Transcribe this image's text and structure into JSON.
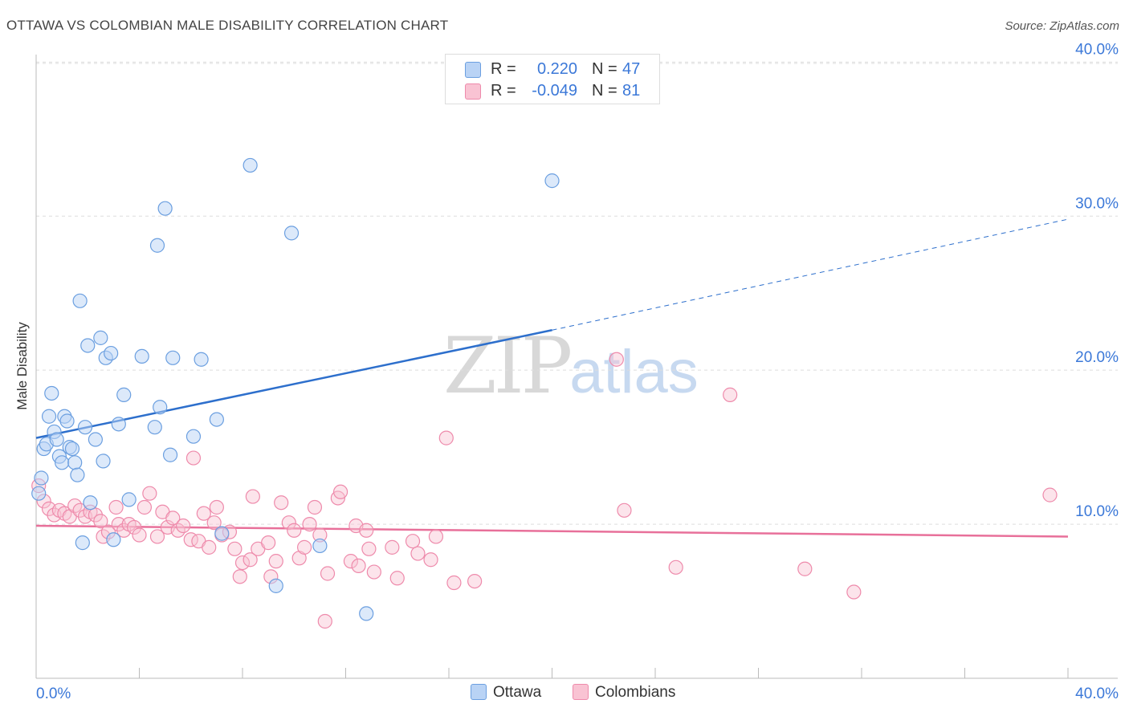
{
  "title": "OTTAWA VS COLOMBIAN MALE DISABILITY CORRELATION CHART",
  "source": "Source: ZipAtlas.com",
  "watermark": {
    "zip": "ZIP",
    "atlas": "atlas"
  },
  "legend_top": [
    {
      "r_label": "R =",
      "r_value": "0.220",
      "n_label": "N =",
      "n_value": "47"
    },
    {
      "r_label": "R =",
      "r_value": "-0.049",
      "n_label": "N =",
      "n_value": "81"
    }
  ],
  "legend_bottom": [
    {
      "label": "Ottawa"
    },
    {
      "label": "Colombians"
    }
  ],
  "colors": {
    "ottawa_fill": "#b9d3f5",
    "ottawa_stroke": "#6b9fe0",
    "ottawa_line": "#2d6fcc",
    "colombians_fill": "#f9c3d3",
    "colombians_stroke": "#ee8aab",
    "colombians_line": "#e8709a",
    "tick_label": "#3b78d8",
    "grid": "#dddddd"
  },
  "chart_data": {
    "type": "scatter",
    "title": "OTTAWA VS COLOMBIAN MALE DISABILITY CORRELATION CHART",
    "xlabel": "",
    "ylabel": "Male Disability",
    "xlim": [
      0,
      40
    ],
    "ylim": [
      0,
      40.8
    ],
    "x_tick_labels": [
      "0.0%",
      "40.0%"
    ],
    "y_ticks": [
      10,
      20,
      30,
      40
    ],
    "y_tick_labels": [
      "10.0%",
      "20.0%",
      "30.0%",
      "40.0%"
    ],
    "grid": "horizontal dashed",
    "legend_position": "top-center and bottom",
    "series": [
      {
        "name": "Ottawa",
        "r": 0.22,
        "n": 47,
        "trend": {
          "x0": 0.0,
          "y0": 15.6,
          "x1": 20.0,
          "y1": 22.6,
          "dashed_to_x": 40.0,
          "dashed_to_y": 29.8
        },
        "points": [
          [
            0.1,
            12.0
          ],
          [
            0.2,
            13.0
          ],
          [
            0.3,
            14.9
          ],
          [
            0.4,
            15.2
          ],
          [
            0.5,
            17.0
          ],
          [
            0.6,
            18.5
          ],
          [
            0.7,
            16.0
          ],
          [
            0.8,
            15.5
          ],
          [
            0.9,
            14.4
          ],
          [
            1.0,
            14.0
          ],
          [
            1.1,
            17.0
          ],
          [
            1.2,
            16.7
          ],
          [
            1.3,
            15.0
          ],
          [
            1.4,
            14.9
          ],
          [
            1.5,
            14.0
          ],
          [
            1.6,
            13.2
          ],
          [
            1.7,
            24.5
          ],
          [
            1.8,
            8.8
          ],
          [
            1.9,
            16.3
          ],
          [
            2.0,
            21.6
          ],
          [
            2.1,
            11.4
          ],
          [
            2.3,
            15.5
          ],
          [
            2.5,
            22.1
          ],
          [
            2.6,
            14.1
          ],
          [
            2.7,
            20.8
          ],
          [
            2.9,
            21.1
          ],
          [
            3.0,
            9.0
          ],
          [
            3.2,
            16.5
          ],
          [
            3.4,
            18.4
          ],
          [
            3.6,
            11.6
          ],
          [
            4.1,
            20.9
          ],
          [
            4.6,
            16.3
          ],
          [
            4.7,
            28.1
          ],
          [
            4.8,
            17.6
          ],
          [
            5.0,
            30.5
          ],
          [
            5.2,
            14.5
          ],
          [
            5.3,
            20.8
          ],
          [
            6.1,
            15.7
          ],
          [
            6.4,
            20.7
          ],
          [
            7.0,
            16.8
          ],
          [
            7.2,
            9.4
          ],
          [
            8.3,
            33.3
          ],
          [
            9.3,
            6.0
          ],
          [
            9.9,
            28.9
          ],
          [
            11.0,
            8.6
          ],
          [
            12.8,
            4.2
          ],
          [
            20.0,
            32.3
          ]
        ]
      },
      {
        "name": "Colombians",
        "r": -0.049,
        "n": 81,
        "trend": {
          "x0": 0.0,
          "y0": 9.9,
          "x1": 40.0,
          "y1": 9.2
        },
        "points": [
          [
            0.1,
            12.5
          ],
          [
            0.3,
            11.5
          ],
          [
            0.5,
            11.0
          ],
          [
            0.7,
            10.6
          ],
          [
            0.9,
            10.9
          ],
          [
            1.1,
            10.7
          ],
          [
            1.3,
            10.5
          ],
          [
            1.5,
            11.2
          ],
          [
            1.7,
            10.9
          ],
          [
            1.9,
            10.5
          ],
          [
            2.1,
            10.8
          ],
          [
            2.3,
            10.6
          ],
          [
            2.5,
            10.2
          ],
          [
            2.6,
            9.2
          ],
          [
            2.8,
            9.5
          ],
          [
            3.1,
            11.1
          ],
          [
            3.2,
            10.0
          ],
          [
            3.4,
            9.6
          ],
          [
            3.6,
            10.0
          ],
          [
            3.8,
            9.8
          ],
          [
            4.0,
            9.3
          ],
          [
            4.2,
            11.1
          ],
          [
            4.4,
            12.0
          ],
          [
            4.7,
            9.2
          ],
          [
            4.9,
            10.8
          ],
          [
            5.1,
            9.8
          ],
          [
            5.3,
            10.4
          ],
          [
            5.5,
            9.6
          ],
          [
            5.7,
            9.9
          ],
          [
            6.0,
            9.0
          ],
          [
            6.1,
            14.3
          ],
          [
            6.3,
            8.9
          ],
          [
            6.5,
            10.7
          ],
          [
            6.7,
            8.5
          ],
          [
            6.9,
            10.1
          ],
          [
            7.0,
            11.1
          ],
          [
            7.2,
            9.3
          ],
          [
            7.5,
            9.5
          ],
          [
            7.7,
            8.4
          ],
          [
            7.9,
            6.6
          ],
          [
            8.0,
            7.5
          ],
          [
            8.3,
            7.7
          ],
          [
            8.4,
            11.8
          ],
          [
            8.6,
            8.4
          ],
          [
            9.0,
            8.8
          ],
          [
            9.1,
            6.6
          ],
          [
            9.3,
            7.6
          ],
          [
            9.5,
            11.4
          ],
          [
            9.8,
            10.1
          ],
          [
            10.0,
            9.6
          ],
          [
            10.2,
            7.8
          ],
          [
            10.4,
            8.5
          ],
          [
            10.6,
            10.0
          ],
          [
            10.8,
            11.1
          ],
          [
            11.0,
            9.3
          ],
          [
            11.2,
            3.7
          ],
          [
            11.3,
            6.8
          ],
          [
            11.7,
            11.7
          ],
          [
            11.8,
            12.1
          ],
          [
            12.2,
            7.6
          ],
          [
            12.4,
            9.9
          ],
          [
            12.5,
            7.3
          ],
          [
            12.8,
            9.6
          ],
          [
            12.9,
            8.4
          ],
          [
            13.1,
            6.9
          ],
          [
            13.8,
            8.5
          ],
          [
            14.0,
            6.5
          ],
          [
            14.6,
            8.9
          ],
          [
            14.8,
            8.1
          ],
          [
            15.3,
            7.7
          ],
          [
            15.5,
            9.2
          ],
          [
            15.9,
            15.6
          ],
          [
            16.2,
            6.2
          ],
          [
            17.0,
            6.3
          ],
          [
            22.5,
            20.7
          ],
          [
            22.8,
            10.9
          ],
          [
            24.8,
            7.2
          ],
          [
            26.9,
            18.4
          ],
          [
            29.8,
            7.1
          ],
          [
            31.7,
            5.6
          ],
          [
            39.3,
            11.9
          ]
        ]
      }
    ]
  }
}
